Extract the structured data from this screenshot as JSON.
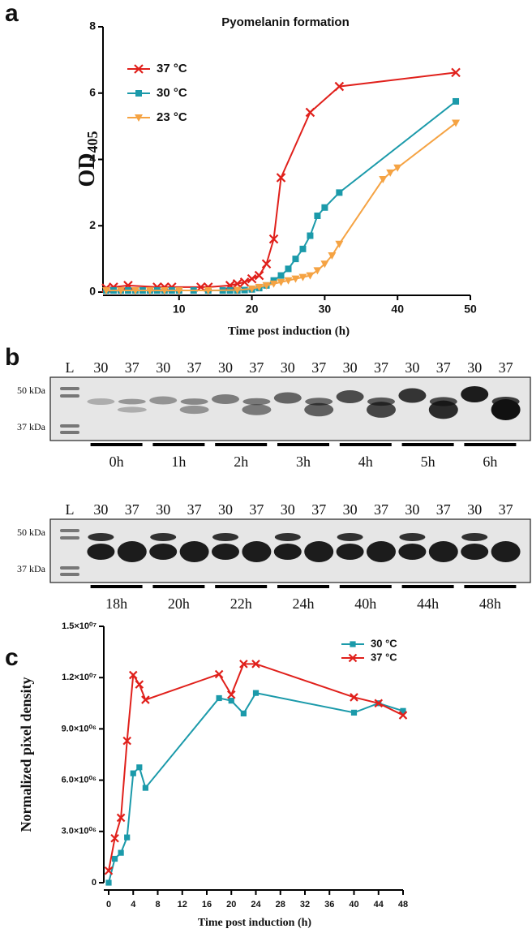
{
  "chart_data": [
    {
      "type": "line",
      "label": "a",
      "title": "Pyomelanin formation",
      "ylabel": "OD",
      "ylabel_subscript": "405",
      "xlabel": "Time post induction (h)",
      "xlim": [
        0,
        50
      ],
      "xticks": [
        10,
        20,
        30,
        40,
        50
      ],
      "ylim": [
        0,
        8
      ],
      "yticks": [
        0,
        2,
        4,
        6,
        8
      ],
      "legend": "upper left",
      "series": [
        {
          "name": "37 °C",
          "color": "#e0201b",
          "marker": "x",
          "x": [
            0,
            1,
            3,
            7,
            8,
            9,
            13,
            14,
            17,
            18,
            19,
            20,
            21,
            22,
            23,
            24,
            28,
            32,
            48
          ],
          "values": [
            0.12,
            0.15,
            0.2,
            0.15,
            0.15,
            0.15,
            0.15,
            0.15,
            0.2,
            0.25,
            0.3,
            0.4,
            0.5,
            0.85,
            1.6,
            3.45,
            5.42,
            6.2,
            6.62
          ]
        },
        {
          "name": "30 °C",
          "color": "#1b9aaa",
          "marker": "square",
          "x": [
            0,
            1,
            2,
            3,
            4,
            5,
            6,
            7,
            8,
            9,
            10,
            12,
            14,
            16,
            17,
            18,
            19,
            20,
            21,
            22,
            23,
            24,
            25,
            26,
            27,
            28,
            29,
            30,
            32,
            48
          ],
          "values": [
            0.05,
            0.05,
            0.05,
            0.05,
            0.05,
            0.05,
            0.05,
            0.05,
            0.05,
            0.05,
            0.05,
            0.05,
            0.05,
            0.05,
            0.05,
            0.05,
            0.06,
            0.08,
            0.12,
            0.2,
            0.35,
            0.5,
            0.7,
            1.0,
            1.3,
            1.7,
            2.3,
            2.55,
            3.0,
            5.75
          ]
        },
        {
          "name": "23 °C",
          "color": "#f5a343",
          "marker": "triangle-down",
          "x": [
            0,
            2,
            4,
            6,
            8,
            10,
            14,
            18,
            20,
            21,
            22,
            23,
            24,
            25,
            26,
            27,
            28,
            29,
            30,
            31,
            32,
            38,
            39,
            40,
            48
          ],
          "values": [
            0.05,
            0.05,
            0.05,
            0.05,
            0.05,
            0.05,
            0.05,
            0.06,
            0.1,
            0.15,
            0.2,
            0.25,
            0.3,
            0.35,
            0.4,
            0.45,
            0.5,
            0.65,
            0.85,
            1.1,
            1.45,
            3.4,
            3.6,
            3.75,
            5.1
          ]
        }
      ]
    },
    {
      "type": "line",
      "label": "c",
      "ylabel": "Normalized pixel density",
      "xlabel": "Time post induction (h)",
      "xlim": [
        0,
        48
      ],
      "xticks": [
        0,
        4,
        8,
        12,
        16,
        20,
        24,
        28,
        32,
        36,
        40,
        44,
        48
      ],
      "ylim": [
        0,
        15000000
      ],
      "yticks": [
        0,
        {
          "value": 3000000,
          "label": "3.0×10⁰⁶"
        },
        {
          "value": 6000000,
          "label": "6.0×10⁰⁶"
        },
        {
          "value": 9000000,
          "label": "9.0×10⁰⁶"
        },
        {
          "value": 12000000,
          "label": "1.2×10⁰⁷"
        },
        {
          "value": 15000000,
          "label": "1.5×10⁰⁷"
        }
      ],
      "legend": "upper right",
      "series": [
        {
          "name": "30 °C",
          "color": "#1b9aaa",
          "marker": "square",
          "x": [
            0,
            1,
            2,
            3,
            4,
            5,
            6,
            18,
            20,
            22,
            24,
            40,
            44,
            48
          ],
          "values": [
            0,
            1400000,
            1750000,
            2650000,
            6400000,
            6750000,
            5550000,
            10800000,
            10650000,
            9900000,
            11100000,
            9950000,
            10500000,
            10050000
          ]
        },
        {
          "name": "37 °C",
          "color": "#e0201b",
          "marker": "x",
          "x": [
            0,
            1,
            2,
            3,
            4,
            5,
            6,
            18,
            20,
            22,
            24,
            40,
            44,
            48
          ],
          "values": [
            700000,
            2600000,
            3800000,
            8300000,
            12150000,
            11600000,
            10700000,
            12200000,
            11000000,
            12800000,
            12800000,
            10850000,
            10500000,
            9800000
          ]
        }
      ]
    }
  ],
  "blot_panel": {
    "label": "b",
    "blots": [
      {
        "lanes": [
          "L",
          "30",
          "37",
          "30",
          "37",
          "30",
          "37",
          "30",
          "37",
          "30",
          "37",
          "30",
          "37",
          "30",
          "37"
        ],
        "markers": [
          "50 kDa",
          "37 kDa"
        ],
        "times": [
          "0h",
          "1h",
          "2h",
          "3h",
          "4h",
          "5h",
          "6h"
        ]
      },
      {
        "lanes": [
          "L",
          "30",
          "37",
          "30",
          "37",
          "30",
          "37",
          "30",
          "37",
          "30",
          "37",
          "30",
          "37",
          "30",
          "37"
        ],
        "markers": [
          "50 kDa",
          "37 kDa"
        ],
        "times": [
          "18h",
          "20h",
          "22h",
          "24h",
          "40h",
          "44h",
          "48h"
        ]
      }
    ]
  }
}
